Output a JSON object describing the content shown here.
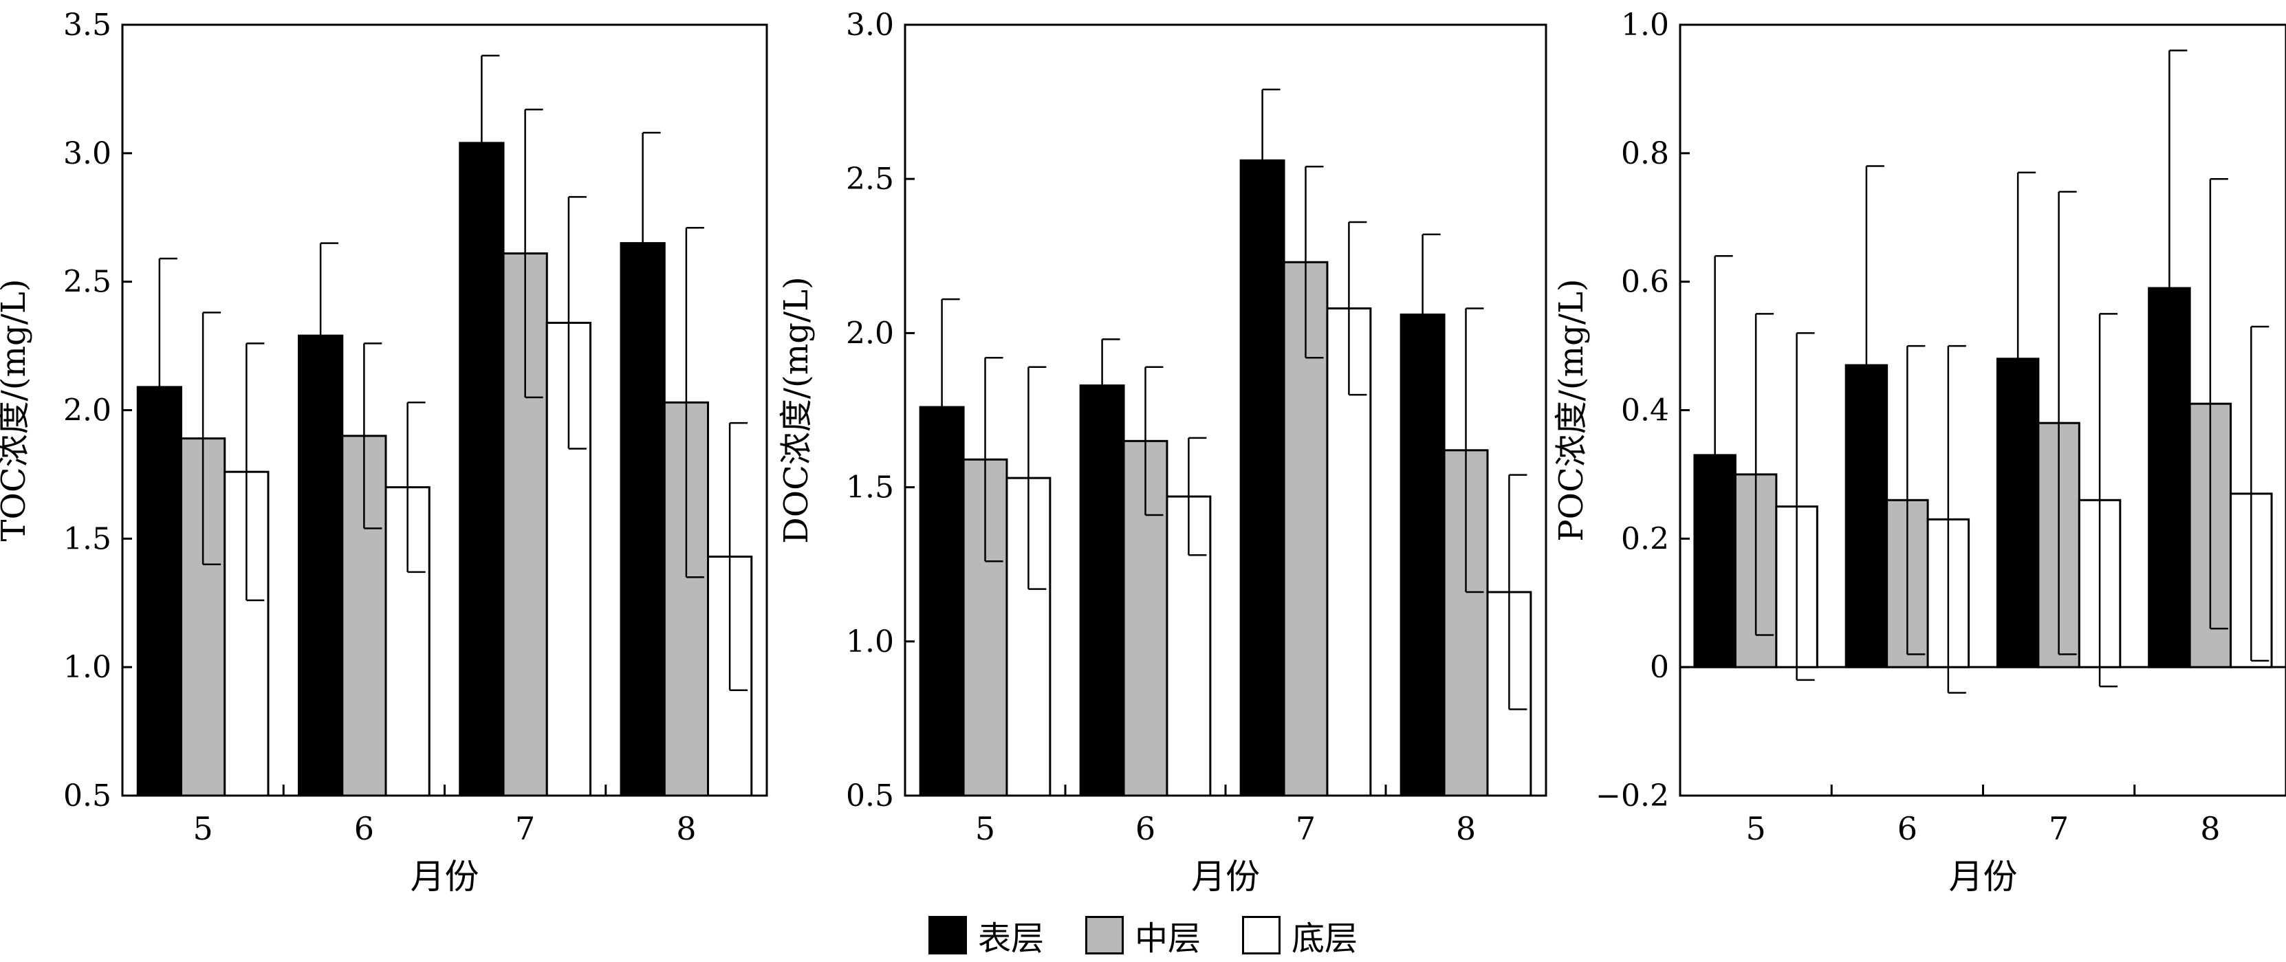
{
  "colors": {
    "surface": "#000000",
    "middle": "#b9b9b9",
    "bottom": "#ffffff"
  },
  "legend": [
    {
      "label": "表层",
      "color_key": "surface"
    },
    {
      "label": "中层",
      "color_key": "middle"
    },
    {
      "label": "底层",
      "color_key": "bottom"
    }
  ],
  "chart_data": [
    {
      "type": "bar",
      "ylabel": "TOC浓度/(mg/L)",
      "xlabel": "月份",
      "categories": [
        "5",
        "6",
        "7",
        "8"
      ],
      "ylim": [
        0.5,
        3.5
      ],
      "yticks": [
        "0.5",
        "1.0",
        "1.5",
        "2.0",
        "2.5",
        "3.0",
        "3.5"
      ],
      "series": [
        {
          "name": "表层",
          "values": [
            2.09,
            2.29,
            3.04,
            2.65
          ],
          "errors": [
            0.5,
            0.36,
            0.34,
            0.43
          ]
        },
        {
          "name": "中层",
          "values": [
            1.89,
            1.9,
            2.61,
            2.03
          ],
          "errors": [
            0.49,
            0.36,
            0.56,
            0.68
          ]
        },
        {
          "name": "底层",
          "values": [
            1.76,
            1.7,
            2.34,
            1.43
          ],
          "errors": [
            0.5,
            0.33,
            0.49,
            0.52
          ]
        }
      ]
    },
    {
      "type": "bar",
      "ylabel": "DOC浓度/(mg/L)",
      "xlabel": "月份",
      "categories": [
        "5",
        "6",
        "7",
        "8"
      ],
      "ylim": [
        0.5,
        3.0
      ],
      "yticks": [
        "0.5",
        "1.0",
        "1.5",
        "2.0",
        "2.5",
        "3.0"
      ],
      "series": [
        {
          "name": "表层",
          "values": [
            1.76,
            1.83,
            2.56,
            2.06
          ],
          "errors": [
            0.35,
            0.15,
            0.23,
            0.26
          ]
        },
        {
          "name": "中层",
          "values": [
            1.59,
            1.65,
            2.23,
            1.62
          ],
          "errors": [
            0.33,
            0.24,
            0.31,
            0.46
          ]
        },
        {
          "name": "底层",
          "values": [
            1.53,
            1.47,
            2.08,
            1.16
          ],
          "errors": [
            0.36,
            0.19,
            0.28,
            0.38
          ]
        }
      ]
    },
    {
      "type": "bar",
      "ylabel": "POC浓度/(mg/L)",
      "xlabel": "月份",
      "categories": [
        "5",
        "6",
        "7",
        "8"
      ],
      "ylim": [
        -0.2,
        1.0
      ],
      "yticks": [
        "−0.2",
        "0",
        "0.2",
        "0.4",
        "0.6",
        "0.8",
        "1.0"
      ],
      "series": [
        {
          "name": "表层",
          "values": [
            0.33,
            0.47,
            0.48,
            0.59
          ],
          "errors": [
            0.31,
            0.31,
            0.29,
            0.37
          ]
        },
        {
          "name": "中层",
          "values": [
            0.3,
            0.26,
            0.38,
            0.41
          ],
          "errors": [
            0.25,
            0.24,
            0.36,
            0.35
          ]
        },
        {
          "name": "底层",
          "values": [
            0.25,
            0.23,
            0.26,
            0.27
          ],
          "errors": [
            0.27,
            0.27,
            0.29,
            0.26
          ]
        }
      ]
    }
  ]
}
